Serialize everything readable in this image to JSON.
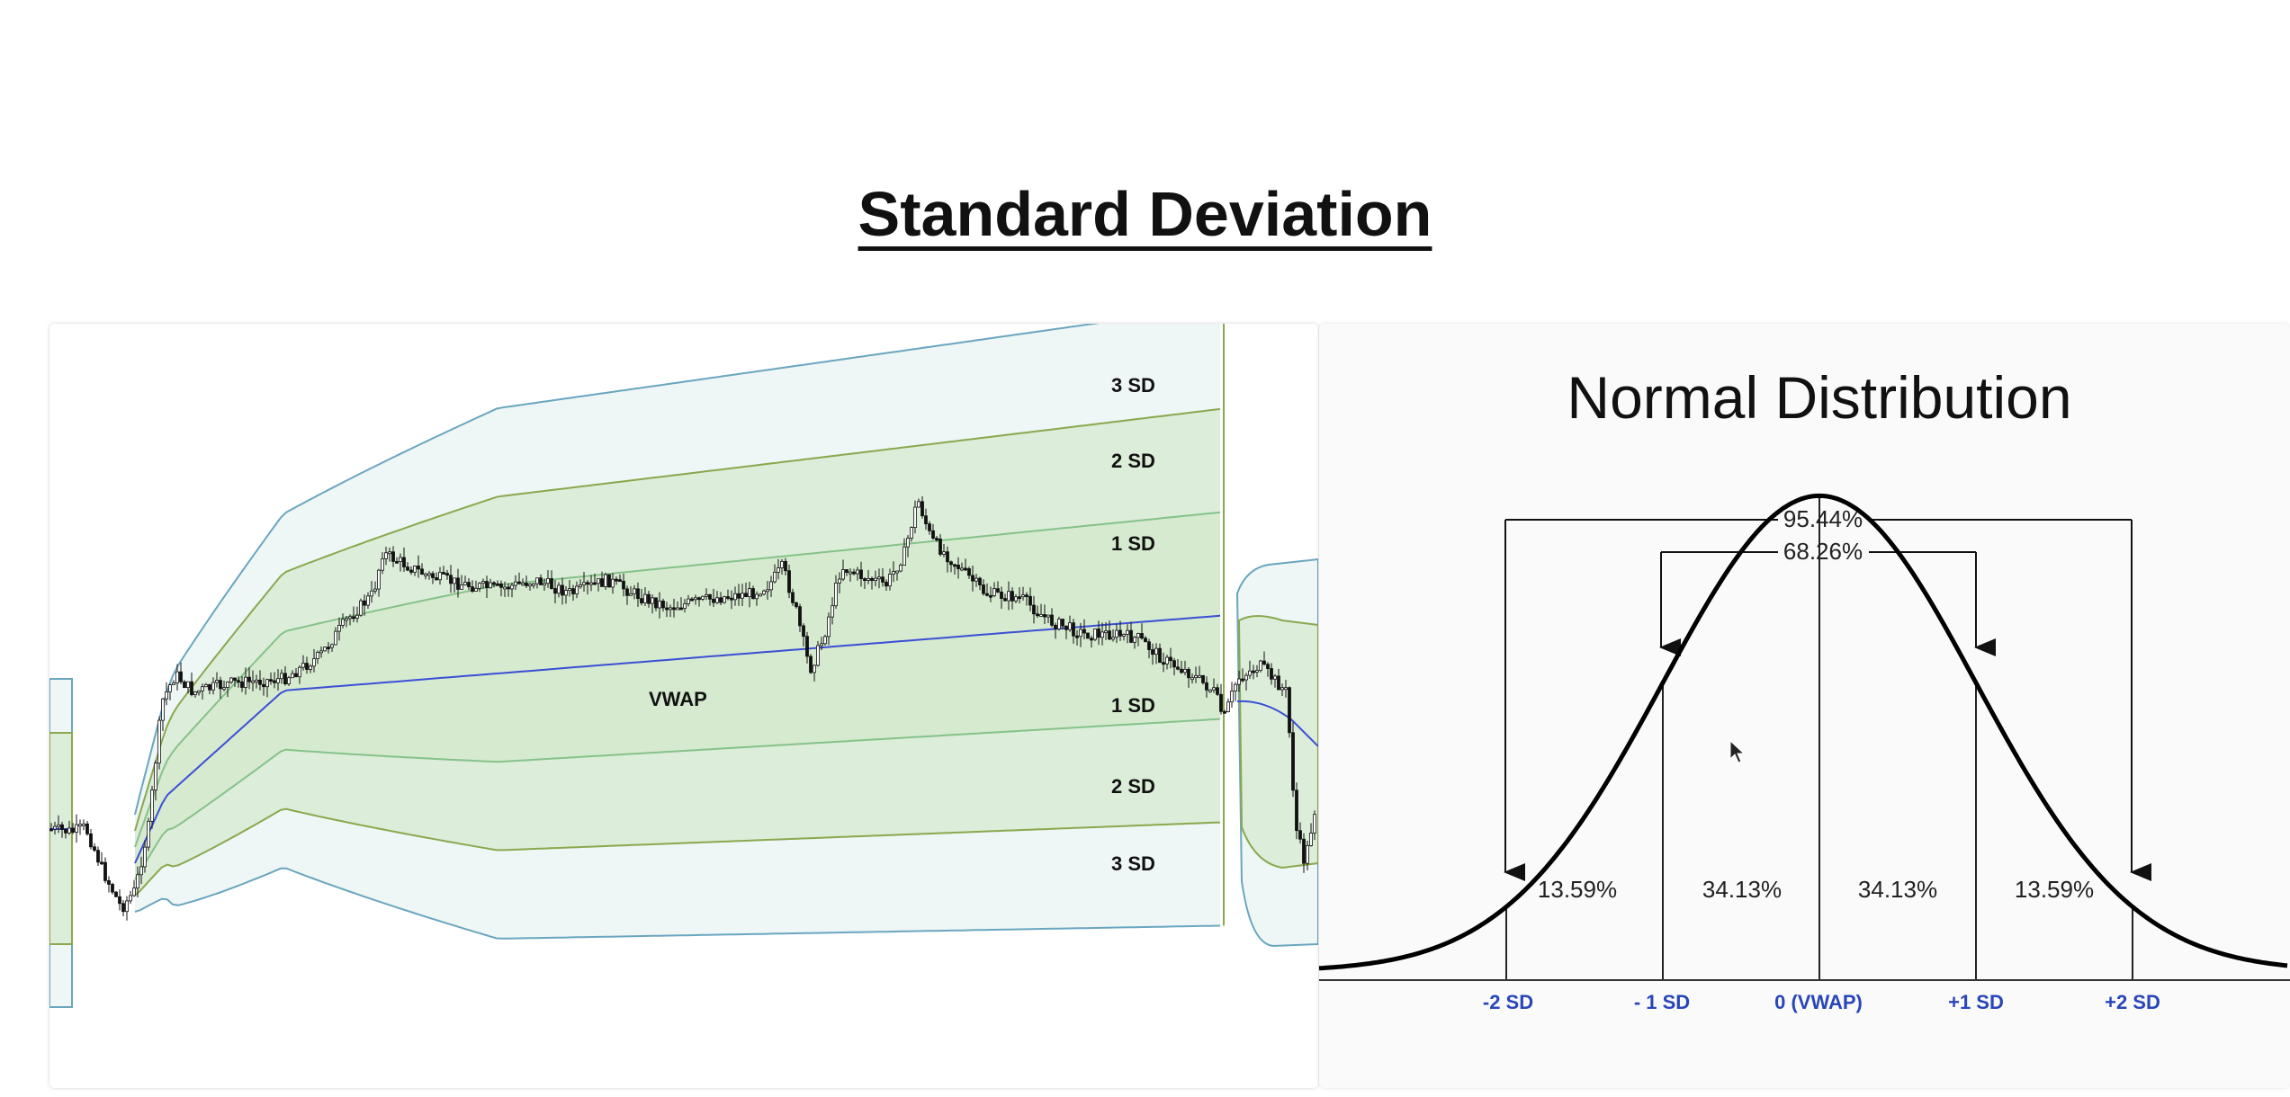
{
  "page": {
    "title": "Standard Deviation"
  },
  "left_chart": {
    "labels": {
      "upper_3": "3 SD",
      "upper_2": "2 SD",
      "upper_1": "1 SD",
      "vwap": "VWAP",
      "lower_1": "1 SD",
      "lower_2": "2 SD",
      "lower_3": "3 SD"
    },
    "colors": {
      "vwap": "#3b4fd6",
      "band_1": "#86c28a",
      "band_2": "#8aa84e",
      "band_3": "#6aa6bf",
      "fill_inner": "#dcedd9",
      "fill_outer": "#eef6f6",
      "candles": "#111111"
    }
  },
  "normal_distribution": {
    "title": "Normal Distribution",
    "span_95": "95.44%",
    "span_68": "68.26%",
    "regions": [
      "13.59%",
      "34.13%",
      "34.13%",
      "13.59%"
    ],
    "axis_labels": [
      "-2 SD",
      "- 1 SD",
      "0 (VWAP)",
      "+1 SD",
      "+2 SD"
    ],
    "colors": {
      "axis_label": "#2846b8",
      "curve": "#000000"
    }
  }
}
